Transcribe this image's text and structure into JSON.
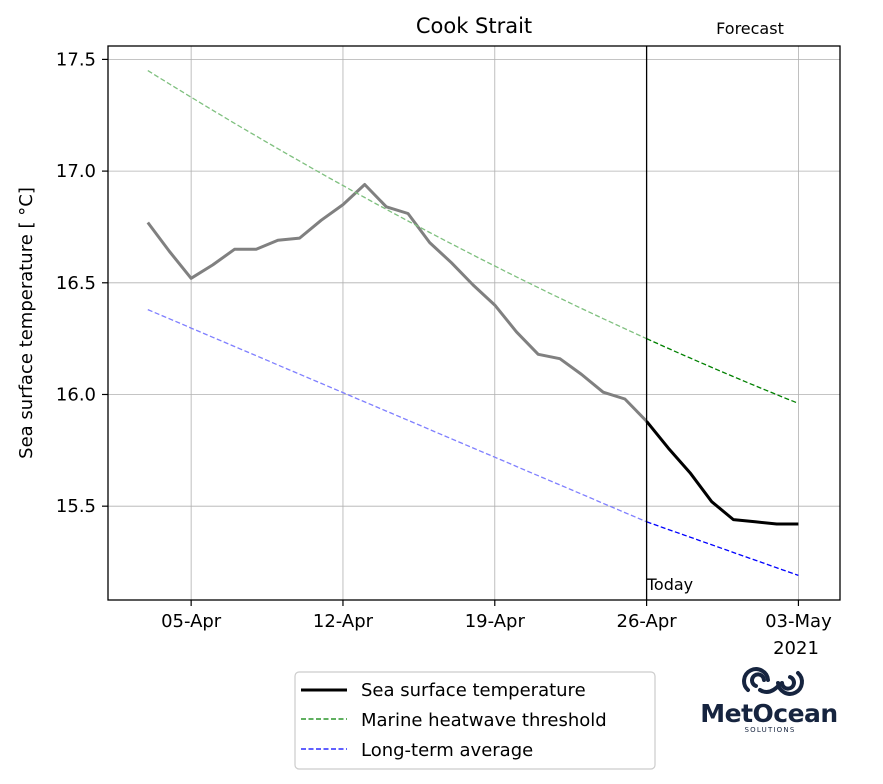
{
  "chart_data": {
    "type": "line",
    "title": "Cook Strait",
    "ylabel": "Sea surface temperature [$^\\circ$C]",
    "ylabel_display": "Sea surface temperature [ °C]",
    "xlabel": "",
    "year_label": "2021",
    "x_ticks": [
      "05-Apr",
      "12-Apr",
      "19-Apr",
      "26-Apr",
      "03-May"
    ],
    "y_ticks": [
      "15.5",
      "16.0",
      "16.5",
      "17.0",
      "17.5"
    ],
    "ylim": [
      15.08,
      17.56
    ],
    "xlim": [
      "2021-04-01T04:00",
      "2021-05-04T22:00"
    ],
    "grid": true,
    "annotations": {
      "forecast": "Forecast",
      "today": "Today",
      "today_date": "2021-04-26"
    },
    "legend": {
      "placement": "below",
      "entries": [
        "Sea surface temperature",
        "Marine heatwave threshold",
        "Long-term average"
      ]
    },
    "series": [
      {
        "name": "Sea surface temperature",
        "color_past": "#808080",
        "color_forecast": "#000000",
        "x": [
          "2021-04-03",
          "2021-04-04",
          "2021-04-05",
          "2021-04-06",
          "2021-04-07",
          "2021-04-08",
          "2021-04-09",
          "2021-04-10",
          "2021-04-11",
          "2021-04-12",
          "2021-04-13",
          "2021-04-14",
          "2021-04-15",
          "2021-04-16",
          "2021-04-17",
          "2021-04-18",
          "2021-04-19",
          "2021-04-20",
          "2021-04-21",
          "2021-04-22",
          "2021-04-23",
          "2021-04-24",
          "2021-04-25",
          "2021-04-26",
          "2021-04-27",
          "2021-04-28",
          "2021-04-29",
          "2021-04-30",
          "2021-05-01",
          "2021-05-02",
          "2021-05-03"
        ],
        "values": [
          16.77,
          16.64,
          16.52,
          16.58,
          16.65,
          16.65,
          16.69,
          16.7,
          16.78,
          16.85,
          16.94,
          16.84,
          16.81,
          16.68,
          16.59,
          16.49,
          16.4,
          16.28,
          16.18,
          16.16,
          16.09,
          16.01,
          15.98,
          15.88,
          15.76,
          15.65,
          15.52,
          15.44,
          15.43,
          15.42,
          15.42
        ]
      },
      {
        "name": "Marine heatwave threshold",
        "color_past": "#7fc07f",
        "color_forecast": "#008000",
        "x": [
          "2021-04-03",
          "2021-04-26",
          "2021-05-03"
        ],
        "values": [
          17.45,
          16.25,
          15.96
        ],
        "curve": "concave"
      },
      {
        "name": "Long-term average",
        "color_past": "#7f7fff",
        "color_forecast": "#0000ff",
        "x": [
          "2021-04-03",
          "2021-04-26",
          "2021-05-03"
        ],
        "values": [
          16.38,
          15.43,
          15.19
        ],
        "curve": "linear"
      }
    ]
  },
  "logo": {
    "name": "MetOcean",
    "subtitle": "SOLUTIONS",
    "color": "#16243f"
  }
}
